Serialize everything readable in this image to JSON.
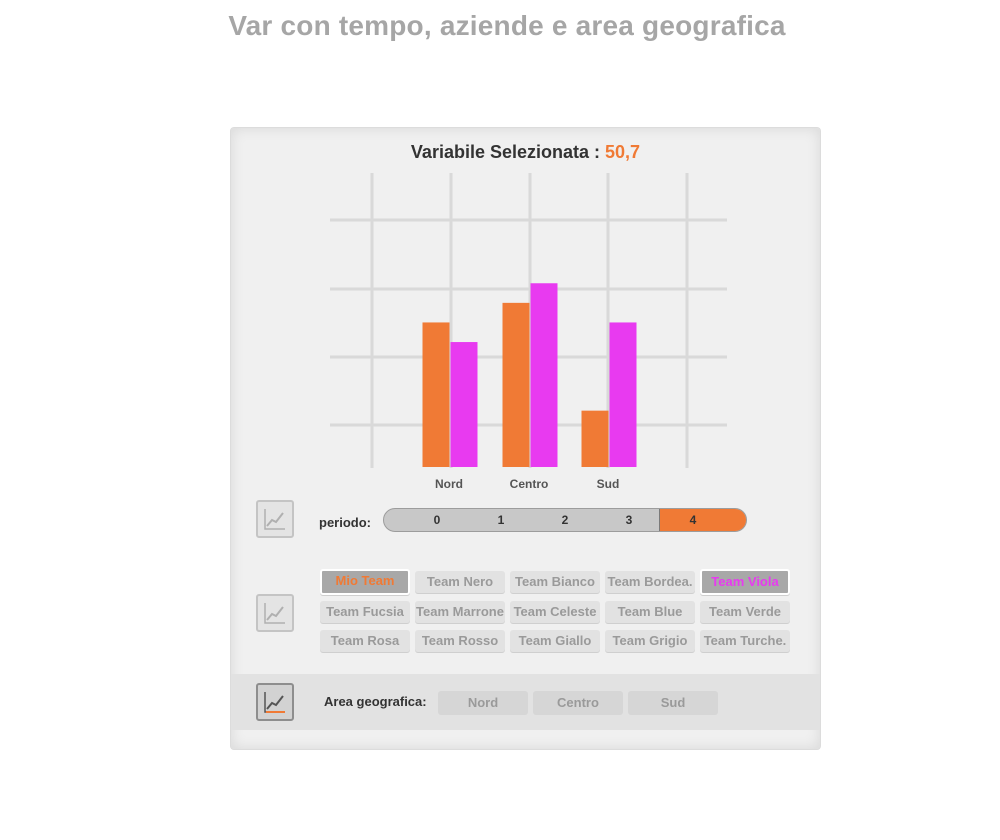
{
  "page": {
    "title": "Var con  tempo, aziende e area geografica"
  },
  "panel": {
    "heading_label": "Variabile Selezionata : ",
    "heading_value": "50,7"
  },
  "chart_data": {
    "type": "bar",
    "categories": [
      "Nord",
      "Centro",
      "Sud"
    ],
    "series": [
      {
        "color": "#f07a35",
        "values": [
          59,
          67,
          23
        ]
      },
      {
        "color": "#e83af0",
        "values": [
          51,
          75,
          59
        ]
      }
    ],
    "ylim": [
      0,
      120
    ],
    "grid": true
  },
  "periodo": {
    "label": "periodo:",
    "ticks": [
      "0",
      "1",
      "2",
      "3",
      "4"
    ],
    "selected_index": 4
  },
  "teams": [
    {
      "label": "Mio Team",
      "state": "selected-mio"
    },
    {
      "label": "Team Nero",
      "state": "off"
    },
    {
      "label": "Team Bianco",
      "state": "off"
    },
    {
      "label": "Team  Bordea.",
      "state": "off"
    },
    {
      "label": "Team Viola",
      "state": "selected-viola"
    },
    {
      "label": "Team Fucsia",
      "state": "off"
    },
    {
      "label": "Team Marrone",
      "state": "off"
    },
    {
      "label": "Team Celeste",
      "state": "off"
    },
    {
      "label": "Team Blue",
      "state": "off"
    },
    {
      "label": "Team Verde",
      "state": "off"
    },
    {
      "label": "Team Rosa",
      "state": "off"
    },
    {
      "label": "Team Rosso",
      "state": "off"
    },
    {
      "label": "Team Giallo",
      "state": "off"
    },
    {
      "label": "Team Grigio",
      "state": "off"
    },
    {
      "label": "Team Turche.",
      "state": "off"
    }
  ],
  "geo": {
    "label": "Area geografica:",
    "options": [
      "Nord",
      "Centro",
      "Sud"
    ]
  },
  "icons": {
    "trend": "chart-trend-icon"
  },
  "colors": {
    "accent": "#f07a35",
    "viola": "#e83af0"
  }
}
